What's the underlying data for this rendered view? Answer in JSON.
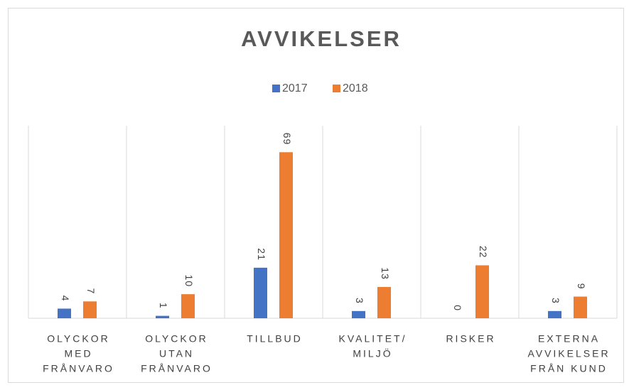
{
  "chart_data": {
    "type": "bar",
    "title": "AVVIKELSER",
    "categories": [
      [
        "OLYCKOR",
        "MED",
        "FRÅNVARO"
      ],
      [
        "OLYCKOR",
        "UTAN",
        "FRÅNVARO"
      ],
      [
        "TILLBUD"
      ],
      [
        "KVALITET/",
        "MILJÖ"
      ],
      [
        "RISKER"
      ],
      [
        "EXTERNA",
        "AVVIKELSER",
        "FRÅN KUND"
      ]
    ],
    "series": [
      {
        "name": "2017",
        "color": "#4472c4",
        "values": [
          4,
          1,
          21,
          3,
          0,
          3
        ]
      },
      {
        "name": "2018",
        "color": "#ed7d31",
        "values": [
          7,
          10,
          69,
          13,
          22,
          9
        ]
      }
    ],
    "ylim": [
      0,
      80
    ],
    "legend": "top",
    "grid": "vertical-separators"
  }
}
